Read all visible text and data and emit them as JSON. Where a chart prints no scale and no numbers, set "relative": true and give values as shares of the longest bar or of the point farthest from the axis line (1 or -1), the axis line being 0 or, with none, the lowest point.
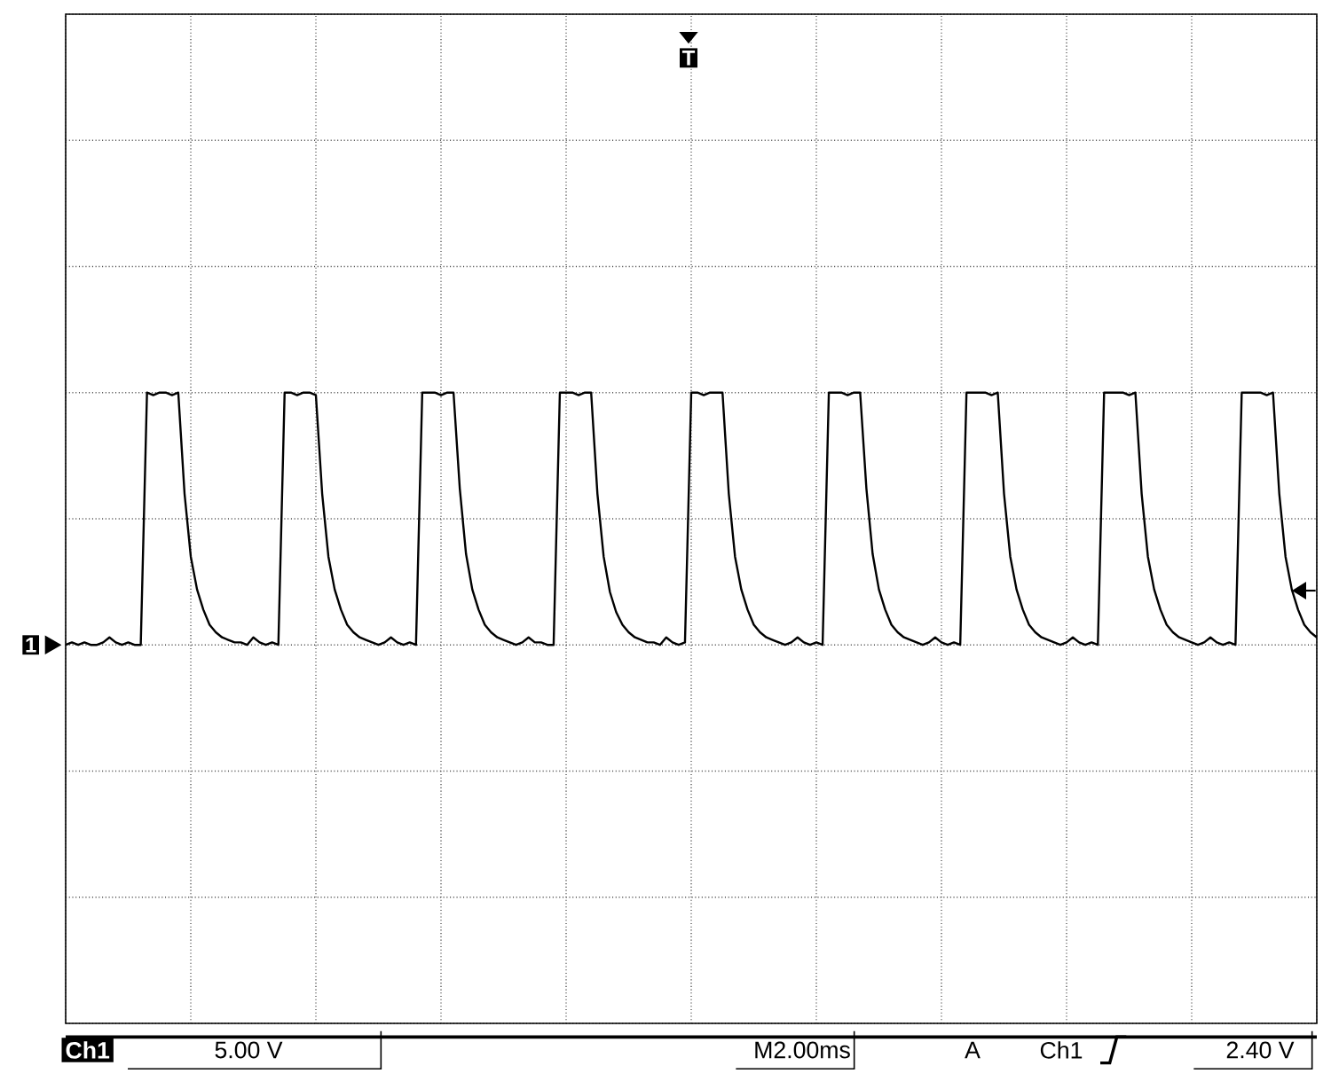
{
  "chart_data": {
    "type": "line",
    "relative": true,
    "grid": true,
    "color": "#000000",
    "annotations": [
      "Ch1",
      "5.00 V",
      "M2.00ms",
      "A",
      "Ch1",
      "2.40 V",
      "1",
      "T"
    ],
    "categories": [
      null,
      null,
      null,
      null,
      null,
      null,
      null,
      null,
      null,
      null,
      null,
      null,
      null,
      null,
      null,
      null,
      null,
      null,
      null,
      null,
      null,
      null,
      null,
      null,
      null,
      null,
      null,
      null,
      null,
      null,
      null,
      null,
      null,
      null,
      null,
      null,
      null,
      null,
      null,
      null,
      null,
      null,
      null,
      null,
      null,
      null,
      null,
      null,
      null,
      null,
      null,
      null,
      null,
      null,
      null,
      null,
      null,
      null,
      null,
      null,
      null,
      null,
      null,
      null,
      null,
      null,
      null,
      null,
      null,
      null,
      null,
      null,
      null,
      null,
      null,
      null,
      null,
      null,
      null,
      null,
      null,
      null,
      null,
      null,
      null,
      null,
      null,
      null,
      null,
      null,
      null,
      null,
      null,
      null,
      null,
      null,
      null,
      null,
      null,
      null,
      null,
      null,
      null,
      null,
      null,
      null,
      null,
      null,
      null,
      null,
      null,
      null,
      null,
      null,
      null,
      null,
      null,
      null,
      null,
      null,
      null,
      null,
      null,
      null,
      null,
      null,
      null,
      null,
      null,
      null,
      null,
      null,
      null,
      null,
      null,
      null,
      null,
      null,
      null,
      null,
      null,
      null,
      null,
      null,
      null,
      null,
      null,
      null,
      null,
      null,
      null,
      null,
      null,
      null,
      null,
      null,
      null,
      null,
      null,
      null,
      null,
      null,
      null,
      null,
      null,
      null,
      null,
      null,
      null,
      null,
      null,
      null,
      null,
      null,
      null,
      null,
      null,
      null,
      null,
      null,
      null,
      null,
      null,
      null,
      null,
      null,
      null,
      null,
      null,
      null,
      null,
      null,
      null,
      null,
      null,
      null,
      null,
      null,
      null,
      null,
      null
    ],
    "values": [
      0,
      0.01,
      0,
      0.01,
      0,
      0,
      0.01,
      0.03,
      0.01,
      0,
      0.01,
      0,
      0,
      1,
      0.99,
      1,
      1,
      0.99,
      1,
      0.6,
      0.35,
      0.22,
      0.14,
      0.08,
      0.05,
      0.03,
      0.02,
      0.01,
      0.01,
      0,
      0.03,
      0.01,
      0,
      0.01,
      0,
      1,
      1,
      0.99,
      1,
      1,
      0.99,
      0.6,
      0.35,
      0.22,
      0.14,
      0.08,
      0.05,
      0.03,
      0.02,
      0.01,
      0,
      0.01,
      0.03,
      0.01,
      0,
      0.01,
      0,
      1,
      1,
      1,
      0.99,
      1,
      1,
      0.62,
      0.36,
      0.22,
      0.14,
      0.08,
      0.05,
      0.03,
      0.02,
      0.01,
      0,
      0.01,
      0.03,
      0.01,
      0.01,
      0,
      0,
      1,
      1,
      1,
      0.99,
      1,
      1,
      0.6,
      0.35,
      0.21,
      0.13,
      0.08,
      0.05,
      0.03,
      0.02,
      0.01,
      0.01,
      0,
      0.03,
      0.01,
      0,
      0.01,
      1,
      1,
      0.99,
      1,
      1,
      1,
      0.6,
      0.35,
      0.22,
      0.14,
      0.08,
      0.05,
      0.03,
      0.02,
      0.01,
      0,
      0.01,
      0.03,
      0.01,
      0,
      0.01,
      0,
      1,
      1,
      1,
      0.99,
      1,
      1,
      0.62,
      0.36,
      0.22,
      0.14,
      0.08,
      0.05,
      0.03,
      0.02,
      0.01,
      0,
      0.01,
      0.03,
      0.01,
      0,
      0.01,
      0,
      1,
      1,
      1,
      1,
      0.99,
      1,
      0.6,
      0.35,
      0.22,
      0.14,
      0.08,
      0.05,
      0.03,
      0.02,
      0.01,
      0,
      0.01,
      0.03,
      0.01,
      0,
      0.01,
      0,
      1,
      1,
      1,
      1,
      0.99,
      1,
      0.6,
      0.35,
      0.22,
      0.14,
      0.08,
      0.05,
      0.03,
      0.02,
      0.01,
      0,
      0.01,
      0.03,
      0.01,
      0,
      0.01,
      0,
      1,
      1,
      1,
      1,
      0.99,
      1,
      0.6,
      0.35,
      0.22,
      0.14,
      0.08,
      0.05,
      0.03
    ]
  }
}
